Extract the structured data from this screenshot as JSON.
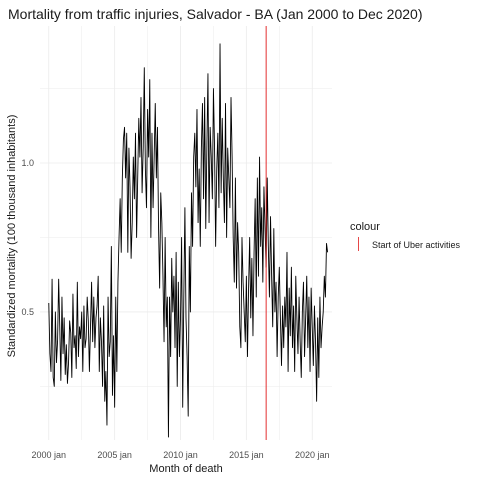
{
  "chart_data": {
    "type": "line",
    "title": "Mortality from traffic injuries, Salvador - BA (Jan 2000 to Dec 2020)",
    "xlabel": "Month of death",
    "ylabel": "Standardized mortality (100 thousand inhabitants)",
    "xlim": [
      "1999-05",
      "2021-07"
    ],
    "ylim": [
      0.07,
      1.46
    ],
    "x_ticks": [
      "2000 jan",
      "2005 jan",
      "2010 jan",
      "2015 jan",
      "2020 jan"
    ],
    "y_ticks": [
      "0.5",
      "1.0"
    ],
    "grid": true,
    "legend_title": "colour",
    "legend_position": "right",
    "series": [
      {
        "color": "#000000",
        "start": "2000-01",
        "frequency": "monthly",
        "values": [
          0.53,
          0.36,
          0.3,
          0.61,
          0.28,
          0.25,
          0.5,
          0.33,
          0.4,
          0.61,
          0.45,
          0.27,
          0.55,
          0.36,
          0.48,
          0.29,
          0.39,
          0.26,
          0.33,
          0.47,
          0.43,
          0.28,
          0.56,
          0.38,
          0.42,
          0.31,
          0.6,
          0.35,
          0.45,
          0.41,
          0.5,
          0.3,
          0.52,
          0.38,
          0.41,
          0.55,
          0.47,
          0.3,
          0.45,
          0.6,
          0.4,
          0.55,
          0.38,
          0.48,
          0.52,
          0.62,
          0.3,
          0.48,
          0.4,
          0.25,
          0.52,
          0.2,
          0.3,
          0.12,
          0.55,
          0.35,
          0.4,
          0.72,
          0.22,
          0.42,
          0.18,
          0.55,
          0.3,
          0.6,
          0.75,
          0.88,
          0.7,
          0.95,
          1.08,
          1.12,
          0.95,
          1.1,
          0.7,
          1.05,
          0.92,
          0.68,
          0.8,
          1.02,
          0.88,
          1.1,
          0.75,
          0.95,
          1.15,
          1.02,
          1.22,
          0.9,
          1.05,
          1.32,
          0.98,
          0.85,
          1.18,
          1.02,
          1.28,
          0.75,
          1.1,
          0.85,
          1.02,
          1.2,
          0.95,
          1.12,
          0.78,
          0.58,
          0.9,
          0.8,
          0.62,
          0.4,
          0.75,
          0.45,
          0.55,
          0.08,
          0.55,
          0.35,
          0.68,
          0.5,
          0.62,
          0.38,
          0.7,
          0.25,
          0.6,
          0.35,
          0.48,
          0.75,
          0.18,
          0.55,
          0.85,
          0.48,
          0.35,
          0.15,
          0.72,
          0.5,
          0.9,
          0.72,
          1.02,
          1.1,
          0.92,
          1.18,
          0.8,
          0.98,
          0.72,
          1.05,
          1.2,
          0.88,
          1.22,
          0.78,
          1.05,
          1.3,
          0.8,
          1.12,
          1.02,
          0.88,
          1.25,
          1.05,
          0.72,
          0.98,
          1.1,
          0.85,
          1.4,
          0.9,
          1.15,
          0.95,
          0.8,
          1.2,
          0.75,
          1.05,
          0.95,
          0.85,
          1.22,
          1.02,
          0.75,
          0.6,
          0.95,
          0.58,
          0.8,
          0.7,
          0.45,
          0.38,
          0.75,
          0.6,
          0.5,
          0.4,
          0.62,
          0.35,
          0.58,
          0.75,
          0.48,
          0.68,
          0.42,
          0.7,
          0.88,
          0.55,
          0.95,
          0.62,
          1.02,
          0.72,
          0.85,
          0.6,
          0.92,
          0.78,
          0.65,
          0.95,
          0.72,
          0.55,
          0.82,
          0.62,
          0.45,
          0.78,
          0.5,
          0.6,
          0.35,
          0.55,
          0.65,
          0.48,
          0.32,
          0.52,
          0.38,
          0.55,
          0.45,
          0.7,
          0.3,
          0.58,
          0.42,
          0.65,
          0.38,
          0.52,
          0.3,
          0.62,
          0.48,
          0.36,
          0.55,
          0.4,
          0.28,
          0.5,
          0.6,
          0.35,
          0.48,
          0.62,
          0.38,
          0.55,
          0.3,
          0.58,
          0.45,
          0.32,
          0.52,
          0.4,
          0.2,
          0.48,
          0.28,
          0.55,
          0.38,
          0.45,
          0.5,
          0.62,
          0.55,
          0.73,
          0.7
        ]
      }
    ],
    "annotations": [
      {
        "type": "vline",
        "x": "2016-07",
        "color": "#e0191a",
        "label": "Start of Uber activities"
      }
    ]
  }
}
